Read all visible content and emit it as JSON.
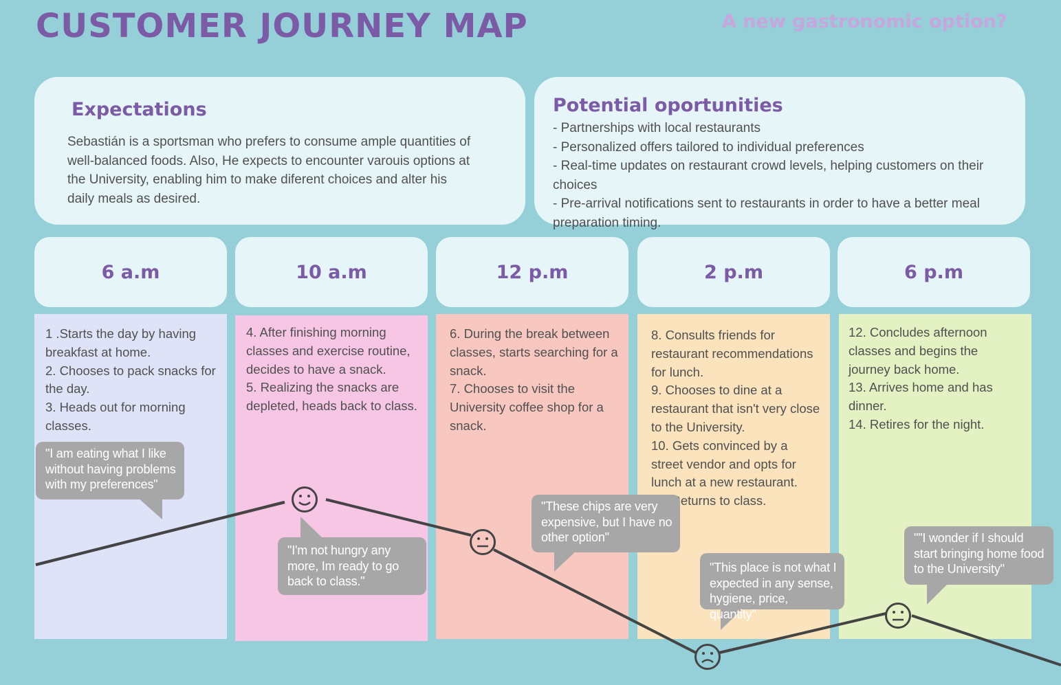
{
  "header": {
    "title": "CUSTOMER JOURNEY MAP",
    "subtitle": "A new gastronomic option?"
  },
  "expectations": {
    "heading": "Expectations",
    "text": "Sebastián is a sportsman who prefers to consume ample quantities of well-balanced foods. Also, He expects to encounter varouis options at the University, enabling him to make diferent choices and alter his daily meals as desired."
  },
  "opportunities": {
    "heading": "Potential oportunities",
    "items": [
      "- Partnerships with local restaurants",
      "- Personalized offers tailored to individual preferences",
      "- Real-time updates on restaurant crowd levels, helping customers on their choices",
      "- Pre-arrival notifications sent to restaurants in order to have a better meal preparation timing."
    ]
  },
  "stages": [
    {
      "time": "6 a.m",
      "color": "#dfe3f8",
      "steps": [
        "1 .Starts the day by having breakfast at home.",
        "2. Chooses to pack snacks for the day.",
        "3. Heads out for morning classes."
      ]
    },
    {
      "time": "10 a.m",
      "color": "#f7c6e4",
      "steps": [
        "4. After finishing morning classes and exercise routine, decides to have a snack.",
        "5. Realizing the snacks are depleted, heads back to class."
      ]
    },
    {
      "time": "12 p.m",
      "color": "#f8c7c0",
      "steps": [
        "6. During the break between classes, starts searching for a snack.",
        "7. Chooses to visit the University coffee shop for a snack."
      ]
    },
    {
      "time": "2 p.m",
      "color": "#fae3bd",
      "steps": [
        "8. Consults friends for restaurant recommendations for lunch.",
        "9. Chooses to dine at a restaurant that isn't very close to the University.",
        "10. Gets convinced by a street vendor and opts for lunch at a new restaurant.",
        "11. Returns to class."
      ]
    },
    {
      "time": "6 p.m",
      "color": "#e4f1c2",
      "steps": [
        "12. Concludes afternoon classes and begins the journey back home.",
        "13. Arrives home and has dinner.",
        "14. Retires for the night."
      ]
    }
  ],
  "quotes": [
    "\"I am eating what I like without having problems with my preferences\"",
    "\"I'm not hungry any more, Im ready to go back to class.\"",
    "\"These chips are very expensive, but I have no other option\"",
    "\"This place is not what I expected in any sense, hygiene, price, quantity\"",
    "\"\"I wonder if I should start bringing home food to the University\""
  ],
  "emotions": [
    {
      "name": "happy-face-icon",
      "mood": "happy"
    },
    {
      "name": "neutral-face-icon",
      "mood": "neutral"
    },
    {
      "name": "sad-face-icon",
      "mood": "sad"
    },
    {
      "name": "neutral-face-icon",
      "mood": "neutral"
    }
  ],
  "colors": {
    "background": "#95cfd8",
    "title": "#7b5aa6",
    "subtitle": "#c7a6dd",
    "panel": "#e6f5f7",
    "bubble": "#a7a7a7",
    "line": "#444444"
  }
}
